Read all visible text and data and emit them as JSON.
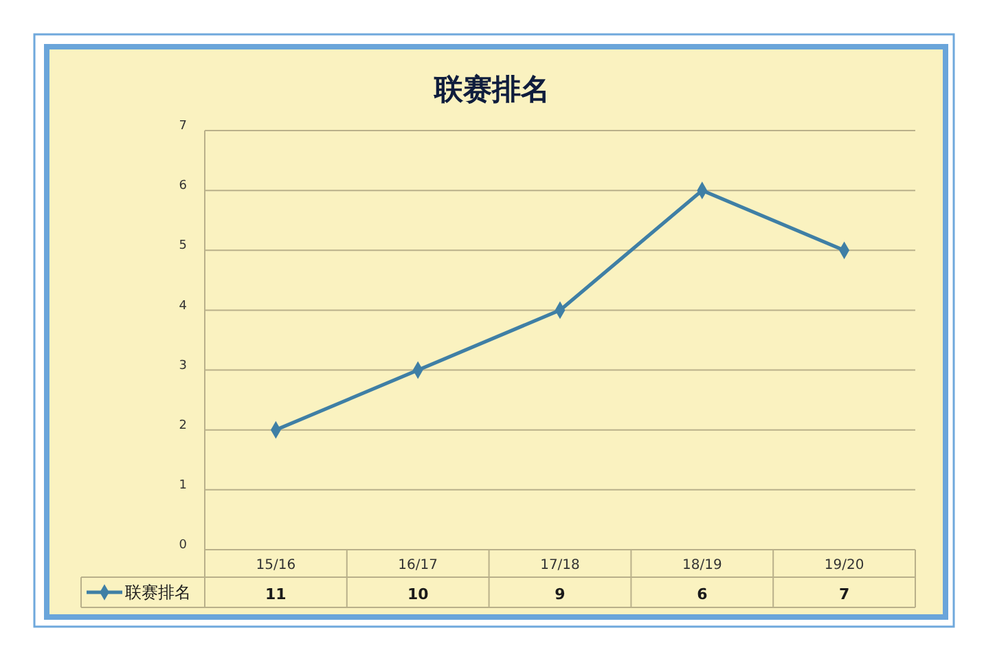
{
  "chart_data": {
    "type": "line",
    "title": "联赛排名",
    "categories": [
      "15/16",
      "16/17",
      "17/18",
      "18/19",
      "19/20"
    ],
    "series": [
      {
        "name": "联赛排名",
        "color": "#3f7fa5",
        "values": [
          2,
          3,
          4,
          6,
          5
        ]
      }
    ],
    "annotations": [
      "11",
      "10",
      "9",
      "6",
      "7"
    ],
    "ylim": [
      0,
      7
    ],
    "yticks": [
      0,
      1,
      2,
      3,
      4,
      5,
      6,
      7
    ],
    "grid": "y",
    "legend": "bottom left",
    "marker": "diamond",
    "line_style": "solid"
  }
}
